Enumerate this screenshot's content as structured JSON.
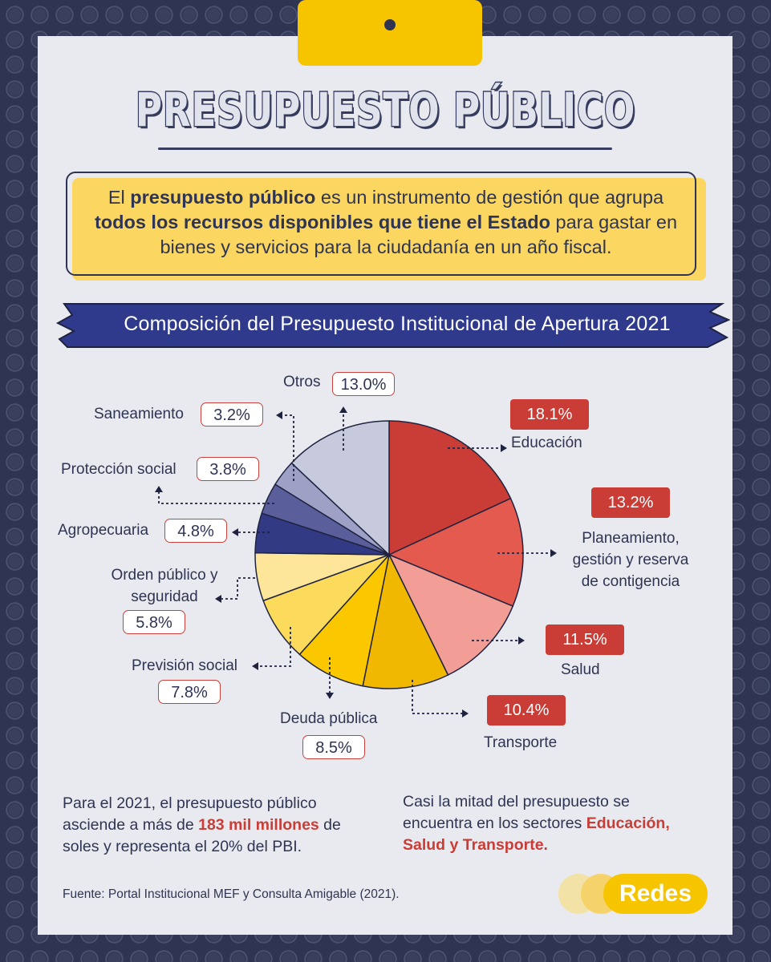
{
  "title": "PRESUPUESTO PÚBLICO",
  "intro": {
    "p1": "El ",
    "b1": "presupuesto público",
    "p2": " es un instrumento de gestión que agrupa ",
    "b2": "todos los recursos disponibles que tiene el Estado",
    "p3": " para gastar en bienes y servicios para la ciudadanía en un año fiscal."
  },
  "banner": "Composición del Presupuesto Institucional de Apertura 2021",
  "chart_data": {
    "type": "pie",
    "title": "Composición del Presupuesto Institucional de Apertura 2021",
    "slices": [
      {
        "name": "Educación",
        "value": 18.1,
        "label": "18.1%",
        "color": "#c93d36"
      },
      {
        "name": "Planeamiento, gestión y reserva de contigencia",
        "value": 13.2,
        "label": "13.2%",
        "color": "#e55a4f"
      },
      {
        "name": "Salud",
        "value": 11.5,
        "label": "11.5%",
        "color": "#f29d95"
      },
      {
        "name": "Transporte",
        "value": 10.4,
        "label": "10.4%",
        "color": "#f0b800"
      },
      {
        "name": "Deuda pública",
        "value": 8.5,
        "label": "8.5%",
        "color": "#fbc800"
      },
      {
        "name": "Previsión social",
        "value": 7.8,
        "label": "7.8%",
        "color": "#fcda5c"
      },
      {
        "name": "Orden público y seguridad",
        "value": 5.8,
        "label": "5.8%",
        "color": "#fde69a"
      },
      {
        "name": "Agropecuaria",
        "value": 4.8,
        "label": "4.8%",
        "color": "#333a84"
      },
      {
        "name": "Protección social",
        "value": 3.8,
        "label": "3.8%",
        "color": "#5a5f9c"
      },
      {
        "name": "Saneamiento",
        "value": 3.2,
        "label": "3.2%",
        "color": "#9ea1c5"
      },
      {
        "name": "Otros",
        "value": 13.0,
        "label": "13.0%",
        "color": "#c7c9dc"
      }
    ],
    "labels": {
      "educacion": "Educación",
      "planeamiento": [
        "Planeamiento,",
        "gestión y reserva",
        "de contigencia"
      ],
      "salud": "Salud",
      "transporte": "Transporte",
      "deuda": "Deuda pública",
      "prevision": "Previsión social",
      "orden": [
        "Orden público y",
        "seguridad"
      ],
      "agro": "Agropecuaria",
      "proteccion": "Protección social",
      "saneamiento": "Saneamiento",
      "otros": "Otros"
    }
  },
  "footer": {
    "left_p1": "Para el 2021, el presupuesto público asciende a más de ",
    "left_hl": "183 mil millones",
    "left_p2": " de soles y representa el 20% del PBI.",
    "right_p1": "Casi la mitad del presupuesto se encuentra en los sectores ",
    "right_hl": "Educación, Salud y Transporte."
  },
  "source": "Fuente: Portal Institucional MEF y Consulta Amigable (2021).",
  "logo": "Redes"
}
